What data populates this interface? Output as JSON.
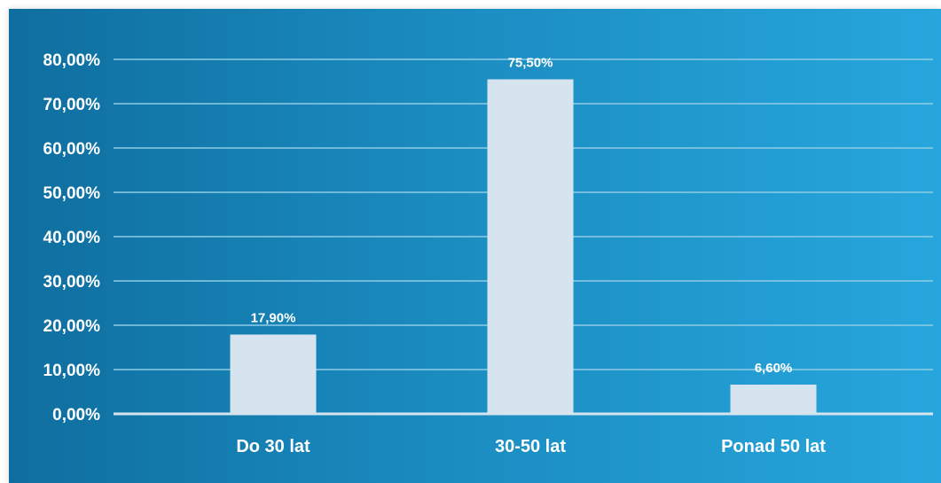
{
  "chart_data": {
    "type": "bar",
    "categories": [
      "Do 30 lat",
      "30-50 lat",
      "Ponad 50 lat"
    ],
    "values": [
      17.9,
      75.5,
      6.6
    ],
    "data_labels": [
      "17,90%",
      "75,50%",
      "6,60%"
    ],
    "y_ticks": [
      0,
      10,
      20,
      30,
      40,
      50,
      60,
      70,
      80
    ],
    "y_tick_labels": [
      "0,00%",
      "10,00%",
      "20,00%",
      "30,00%",
      "40,00%",
      "50,00%",
      "60,00%",
      "70,00%",
      "80,00%"
    ],
    "ylim": [
      0,
      80
    ],
    "title": "",
    "xlabel": "",
    "ylabel": "",
    "grid": true,
    "legend": "none",
    "colors": {
      "background_start": "#0f6e9f",
      "background_end": "#27a6dd",
      "bar": "#d6e4ef",
      "grid": "#8fcbe6",
      "axis": "#d6e4ef",
      "text": "#ffffff"
    }
  }
}
